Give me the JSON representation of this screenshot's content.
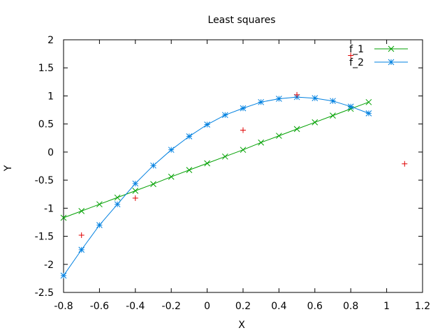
{
  "chart_data": {
    "type": "line",
    "title": "Least squares",
    "xlabel": "X",
    "ylabel": "Y",
    "xlim": [
      -0.8,
      1.2
    ],
    "ylim": [
      -2.5,
      2
    ],
    "xticks": [
      -0.8,
      -0.6,
      -0.4,
      -0.2,
      0,
      0.2,
      0.4,
      0.6,
      0.8,
      1,
      1.2
    ],
    "yticks": [
      -2.5,
      -2,
      -1.5,
      -1,
      -0.5,
      0,
      0.5,
      1,
      1.5,
      2
    ],
    "xtick_labels": [
      "-0.8",
      "-0.6",
      "-0.4",
      "-0.2",
      "0",
      "0.2",
      "0.4",
      "0.6",
      "0.8",
      "1",
      "1.2"
    ],
    "ytick_labels": [
      "-2.5",
      "-2",
      "-1.5",
      "-1",
      "-0.5",
      "0",
      "0.5",
      "1",
      "1.5",
      "2"
    ],
    "grid": false,
    "legend_position": "top-right",
    "series": [
      {
        "name": "f_1",
        "color": "#00a000",
        "marker": "cross-x",
        "x": [
          -0.8,
          -0.7,
          -0.6,
          -0.5,
          -0.4,
          -0.3,
          -0.2,
          -0.1,
          0,
          0.1,
          0.2,
          0.3,
          0.4,
          0.5,
          0.6,
          0.7,
          0.8,
          0.9
        ],
        "y": [
          -1.17,
          -1.05,
          -0.93,
          -0.81,
          -0.69,
          -0.57,
          -0.44,
          -0.32,
          -0.2,
          -0.08,
          0.04,
          0.17,
          0.29,
          0.41,
          0.53,
          0.65,
          0.77,
          0.89
        ]
      },
      {
        "name": "f_2",
        "color": "#0080e0",
        "marker": "star",
        "x": [
          -0.8,
          -0.7,
          -0.6,
          -0.5,
          -0.4,
          -0.3,
          -0.2,
          -0.1,
          0,
          0.1,
          0.2,
          0.3,
          0.4,
          0.5,
          0.6,
          0.7,
          0.8,
          0.9
        ],
        "y": [
          -2.2,
          -1.74,
          -1.3,
          -0.93,
          -0.56,
          -0.24,
          0.04,
          0.28,
          0.49,
          0.66,
          0.78,
          0.89,
          0.95,
          0.98,
          0.96,
          0.91,
          0.81,
          0.69
        ]
      }
    ],
    "points": {
      "color": "#e00000",
      "marker": "plus",
      "x": [
        -0.7,
        -0.4,
        0.2,
        0.5,
        0.8,
        1.1
      ],
      "y": [
        -1.48,
        -0.82,
        0.39,
        1.02,
        1.72,
        -0.21
      ]
    }
  }
}
